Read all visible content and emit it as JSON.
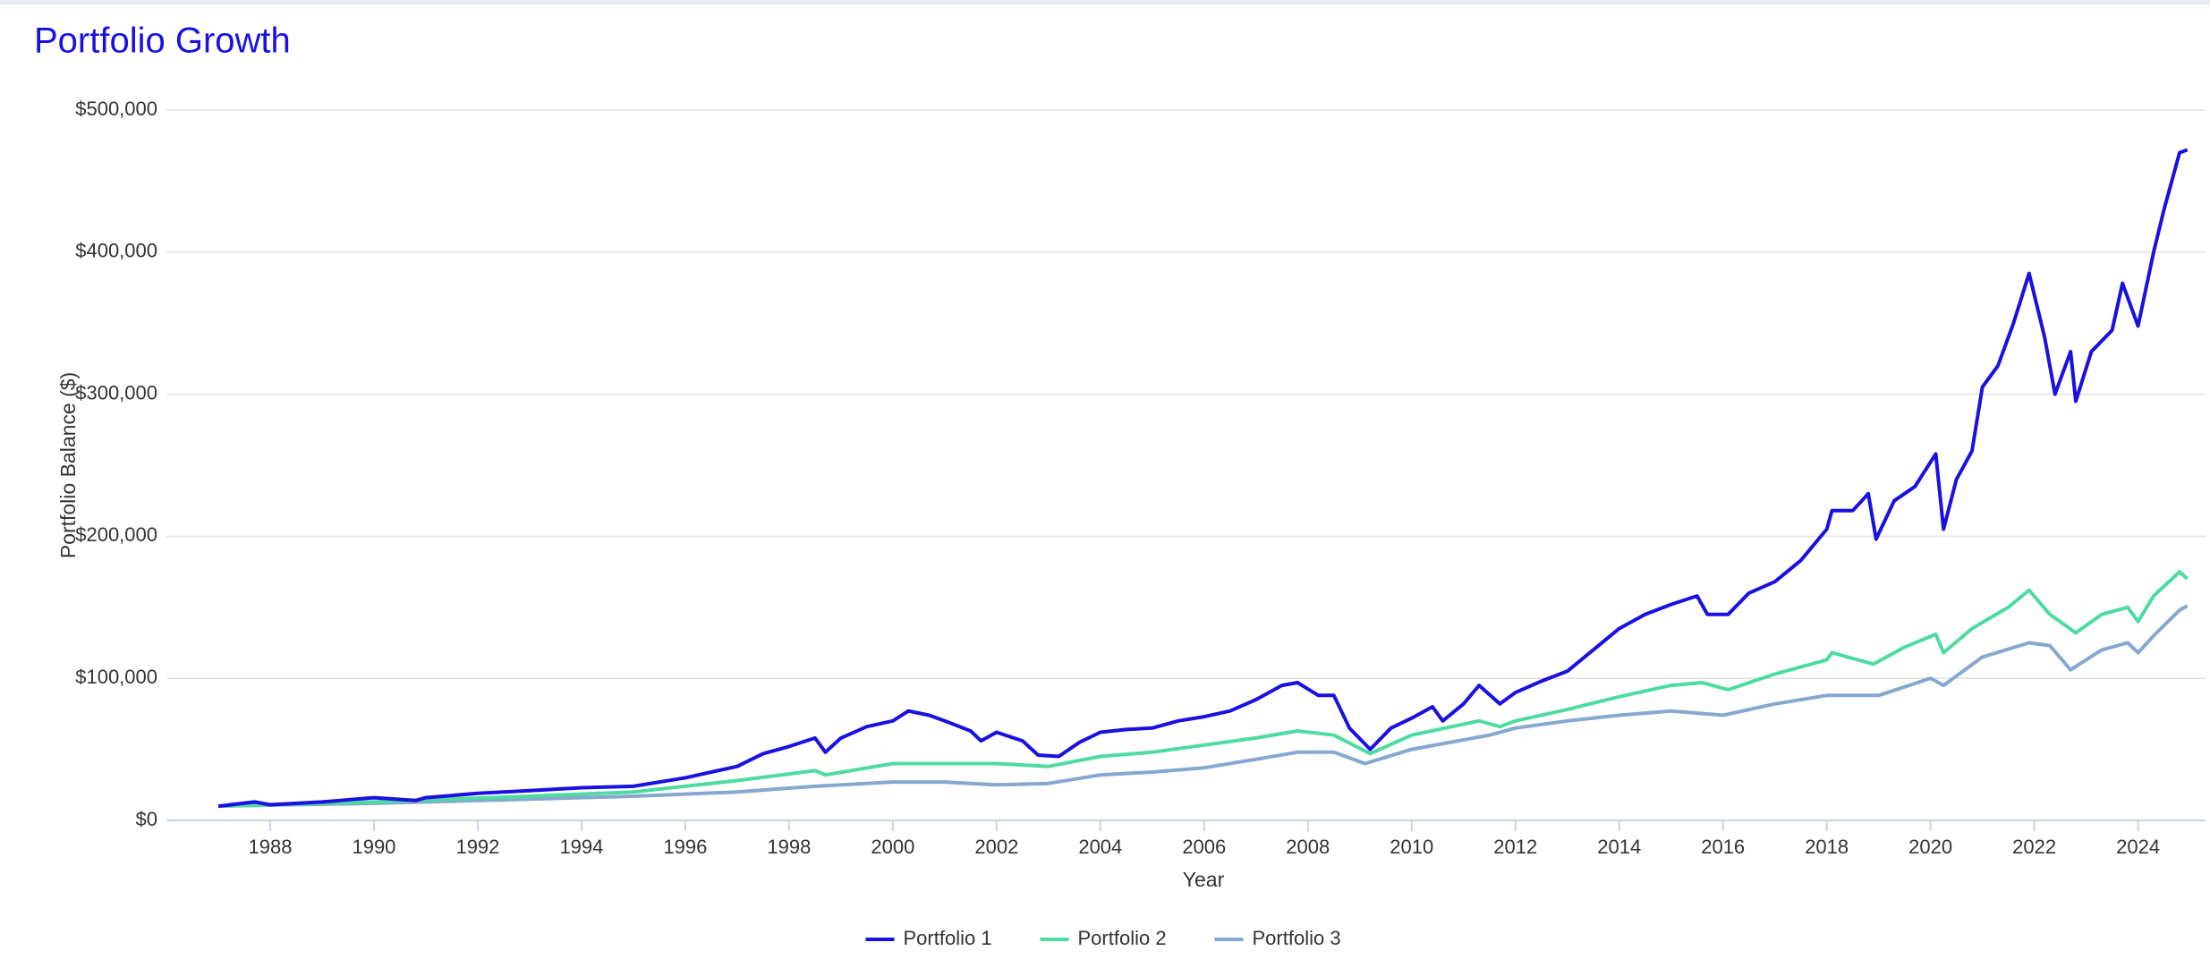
{
  "chart_data": {
    "type": "line",
    "title": "Portfolio Growth",
    "x_label": "Year",
    "y_label": "Portfolio Balance ($)",
    "xlim": [
      1986,
      2025.3
    ],
    "xticks": [
      1988,
      1990,
      1992,
      1994,
      1996,
      1998,
      2000,
      2002,
      2004,
      2006,
      2008,
      2010,
      2012,
      2014,
      2016,
      2018,
      2020,
      2022,
      2024
    ],
    "ylim": [
      0,
      500000
    ],
    "yticks": [
      {
        "value": 0,
        "label": "$0"
      },
      {
        "value": 100000,
        "label": "$100,000"
      },
      {
        "value": 200000,
        "label": "$200,000"
      },
      {
        "value": 300000,
        "label": "$300,000"
      },
      {
        "value": 400000,
        "label": "$400,000"
      },
      {
        "value": 500000,
        "label": "$500,000"
      }
    ],
    "grid": true,
    "legend": "bottom",
    "series": [
      {
        "name": "Portfolio 1",
        "color": "#1a10e0",
        "x": [
          1987.0,
          1987.7,
          1988.0,
          1989.0,
          1990.0,
          1990.8,
          1991.0,
          1992.0,
          1993.0,
          1994.0,
          1995.0,
          1996.0,
          1996.5,
          1997.0,
          1997.5,
          1998.0,
          1998.5,
          1998.7,
          1999.0,
          1999.5,
          2000.0,
          2000.3,
          2000.7,
          2001.0,
          2001.5,
          2001.7,
          2002.0,
          2002.5,
          2002.8,
          2003.2,
          2003.6,
          2004.0,
          2004.5,
          2005.0,
          2005.5,
          2006.0,
          2006.5,
          2007.0,
          2007.5,
          2007.8,
          2008.2,
          2008.5,
          2008.8,
          2009.2,
          2009.6,
          2010.0,
          2010.4,
          2010.6,
          2011.0,
          2011.3,
          2011.7,
          2012.0,
          2012.5,
          2013.0,
          2013.5,
          2014.0,
          2014.5,
          2015.0,
          2015.5,
          2015.7,
          2016.1,
          2016.5,
          2017.0,
          2017.5,
          2018.0,
          2018.1,
          2018.5,
          2018.8,
          2018.95,
          2019.3,
          2019.7,
          2020.1,
          2020.25,
          2020.5,
          2020.8,
          2021.0,
          2021.3,
          2021.6,
          2021.9,
          2022.2,
          2022.4,
          2022.7,
          2022.8,
          2023.1,
          2023.5,
          2023.7,
          2024.0,
          2024.3,
          2024.5,
          2024.8,
          2024.95
        ],
        "values": [
          10000,
          13000,
          11000,
          13000,
          16000,
          14000,
          16000,
          19000,
          21000,
          23000,
          24000,
          30000,
          34000,
          38000,
          47000,
          52000,
          58000,
          48000,
          58000,
          66000,
          70000,
          77000,
          74000,
          70000,
          63000,
          56000,
          62000,
          56000,
          46000,
          45000,
          55000,
          62000,
          64000,
          65000,
          70000,
          73000,
          77000,
          85000,
          95000,
          97000,
          88000,
          88000,
          65000,
          50000,
          65000,
          72000,
          80000,
          70000,
          82000,
          95000,
          82000,
          90000,
          98000,
          105000,
          120000,
          135000,
          145000,
          152000,
          158000,
          145000,
          145000,
          160000,
          168000,
          183000,
          205000,
          218000,
          218000,
          230000,
          198000,
          225000,
          235000,
          258000,
          205000,
          240000,
          260000,
          305000,
          320000,
          350000,
          385000,
          340000,
          300000,
          330000,
          295000,
          330000,
          345000,
          378000,
          348000,
          400000,
          430000,
          470000,
          472000
        ]
      },
      {
        "name": "Portfolio 2",
        "color": "#4ddba0",
        "x": [
          1987.0,
          1990.0,
          1993.0,
          1995.0,
          1997.0,
          1998.5,
          1998.7,
          2000.0,
          2001.0,
          2002.0,
          2003.0,
          2004.0,
          2005.0,
          2006.0,
          2007.0,
          2007.8,
          2008.5,
          2009.2,
          2010.0,
          2011.3,
          2011.7,
          2012.0,
          2013.0,
          2014.0,
          2015.0,
          2015.6,
          2016.1,
          2017.0,
          2018.0,
          2018.1,
          2018.9,
          2019.5,
          2020.1,
          2020.25,
          2020.8,
          2021.5,
          2021.9,
          2022.3,
          2022.8,
          2023.3,
          2023.8,
          2024.0,
          2024.3,
          2024.8,
          2024.95
        ],
        "values": [
          10000,
          13000,
          17000,
          20000,
          28000,
          35000,
          32000,
          40000,
          40000,
          40000,
          38000,
          45000,
          48000,
          53000,
          58000,
          63000,
          60000,
          47000,
          60000,
          70000,
          66000,
          70000,
          78000,
          87000,
          95000,
          97000,
          92000,
          103000,
          113000,
          118000,
          110000,
          122000,
          131000,
          118000,
          135000,
          150000,
          162000,
          145000,
          132000,
          145000,
          150000,
          140000,
          158000,
          175000,
          170000
        ]
      },
      {
        "name": "Portfolio 3",
        "color": "#86a7cf",
        "x": [
          1987.0,
          1990.0,
          1993.0,
          1995.0,
          1997.0,
          1998.5,
          2000.0,
          2001.0,
          2002.0,
          2003.0,
          2004.0,
          2005.0,
          2006.0,
          2007.0,
          2007.8,
          2008.5,
          2009.1,
          2010.0,
          2011.5,
          2012.0,
          2013.0,
          2014.0,
          2015.0,
          2016.0,
          2017.0,
          2018.0,
          2019.0,
          2020.0,
          2020.25,
          2021.0,
          2021.9,
          2022.3,
          2022.7,
          2023.3,
          2023.8,
          2024.0,
          2024.3,
          2024.8,
          2024.95
        ],
        "values": [
          10000,
          12000,
          15000,
          17000,
          20000,
          24000,
          27000,
          27000,
          25000,
          26000,
          32000,
          34000,
          37000,
          43000,
          48000,
          48000,
          40000,
          50000,
          60000,
          65000,
          70000,
          74000,
          77000,
          74000,
          82000,
          88000,
          88000,
          100000,
          95000,
          115000,
          125000,
          123000,
          106000,
          120000,
          125000,
          118000,
          130000,
          148000,
          151000
        ]
      }
    ]
  }
}
